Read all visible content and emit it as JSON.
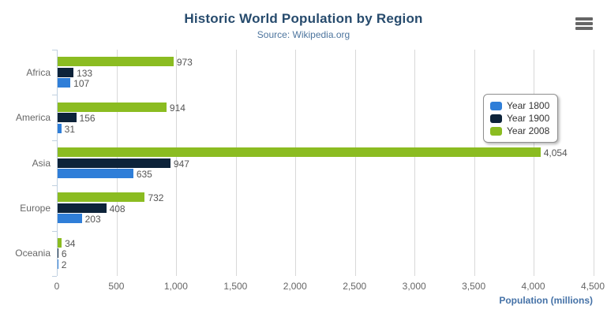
{
  "chart_data": {
    "type": "bar",
    "orientation": "horizontal",
    "title": "Historic World Population by Region",
    "subtitle": "Source: Wikipedia.org",
    "categories": [
      "Africa",
      "America",
      "Asia",
      "Europe",
      "Oceania"
    ],
    "series": [
      {
        "name": "Year 1800",
        "color": "#2f7ed8",
        "values": [
          107,
          31,
          635,
          203,
          2
        ]
      },
      {
        "name": "Year 1900",
        "color": "#0d233a",
        "values": [
          133,
          156,
          947,
          408,
          6
        ]
      },
      {
        "name": "Year 2008",
        "color": "#8bbc21",
        "values": [
          973,
          914,
          4054,
          732,
          34
        ]
      }
    ],
    "bar_order_top_to_bottom": [
      "Year 2008",
      "Year 1900",
      "Year 1800"
    ],
    "xlabel": "Population (millions)",
    "xlim": [
      0,
      4500
    ],
    "xticks": [
      "0",
      "500",
      "1,000",
      "1,500",
      "2,000",
      "2,500",
      "3,000",
      "3,500",
      "4,000",
      "4,500"
    ],
    "grid": true,
    "legend": {
      "position": "right",
      "items": [
        "Year 1800",
        "Year 1900",
        "Year 2008"
      ]
    }
  },
  "controls": {
    "menu_icon": "hamburger-menu-icon"
  },
  "colors": {
    "title": "#274b6d",
    "subtitle": "#4d759e",
    "axis_title": "#4572a7",
    "axis_line": "#c0d0e0",
    "gridline": "#d8d8d8",
    "tick_label": "#666666",
    "category_label": "#666666",
    "data_label": "#555555",
    "legend_border": "#909090",
    "legend_text": "#333333",
    "menu_icon": "#666666",
    "background": "#ffffff"
  }
}
